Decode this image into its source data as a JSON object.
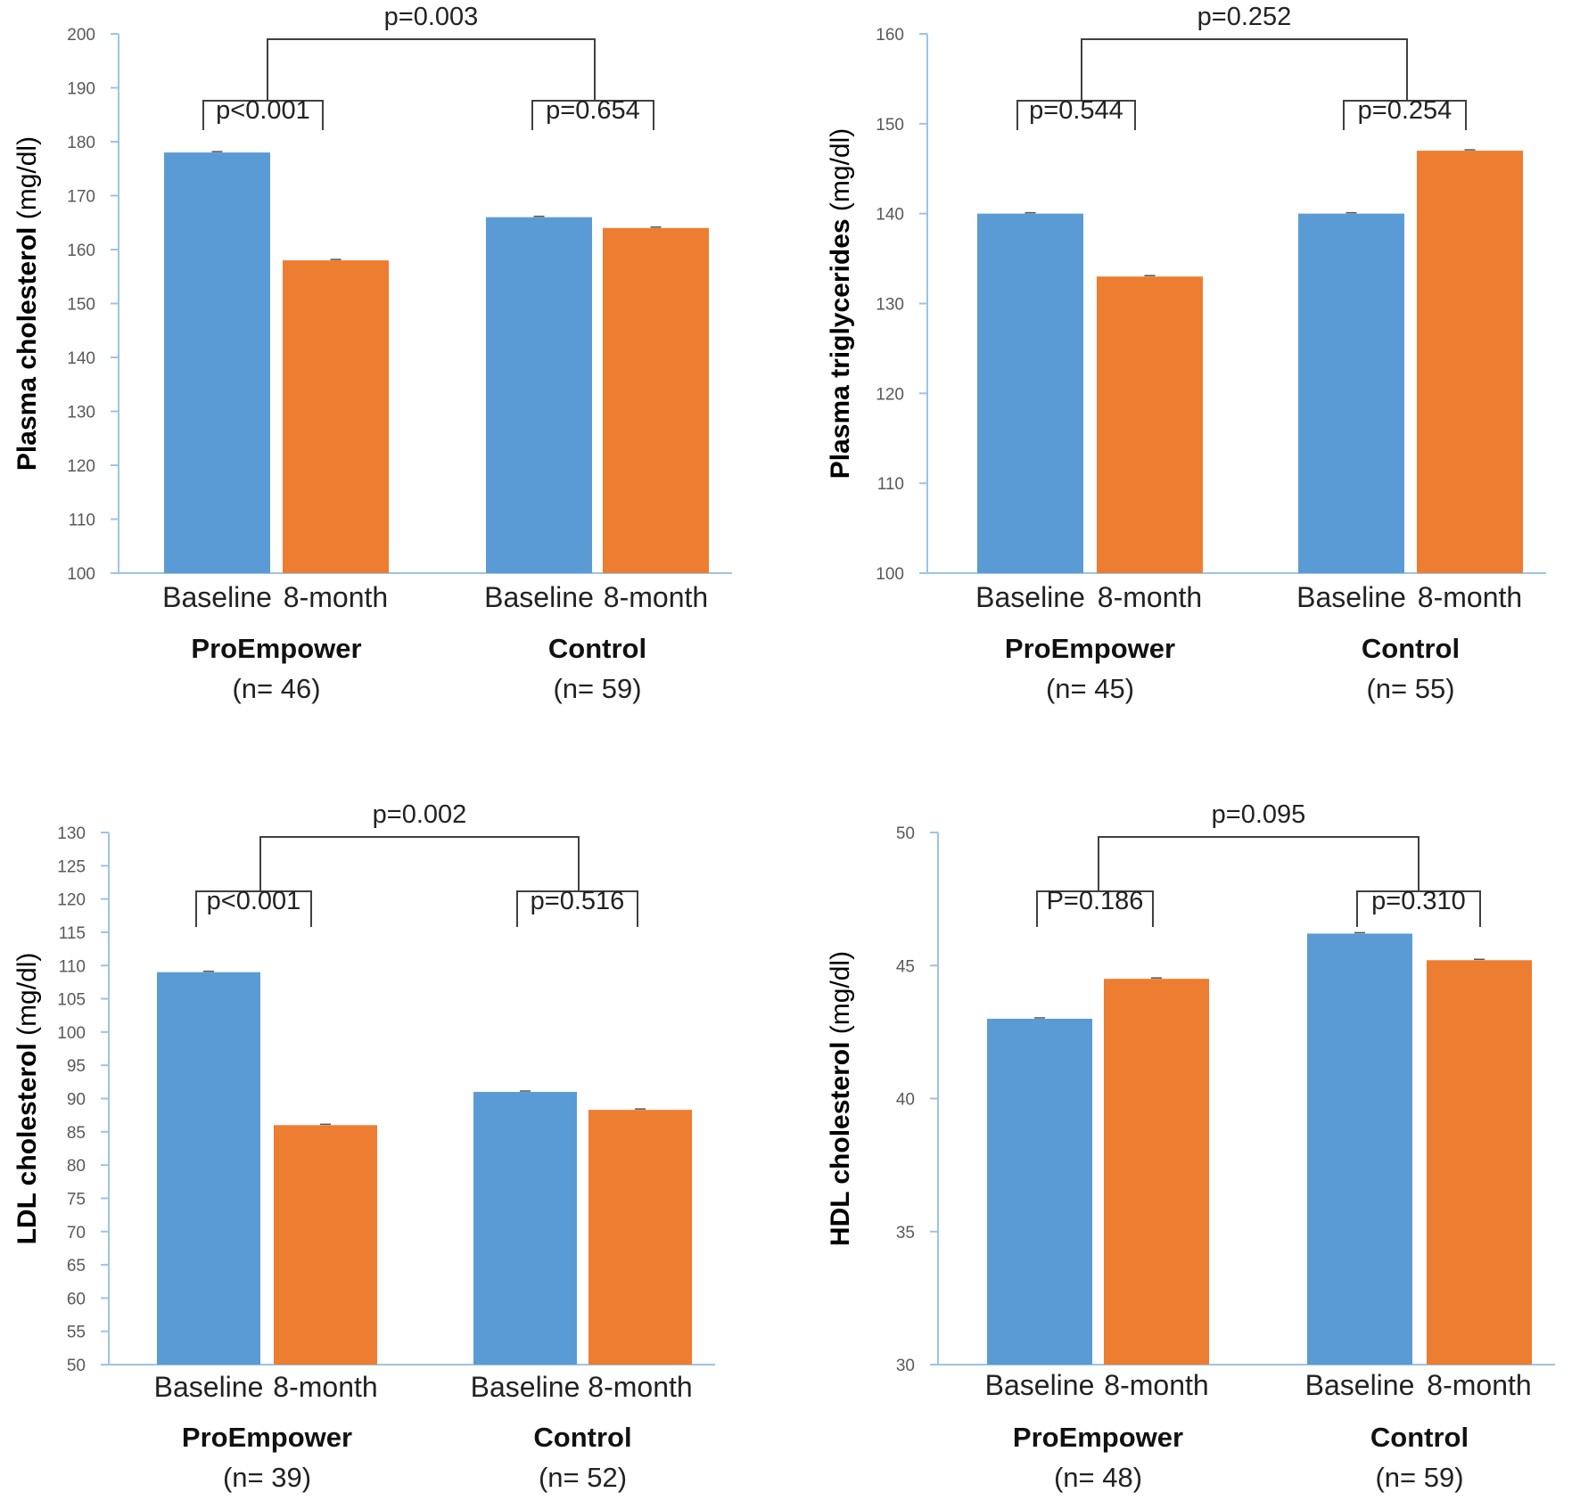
{
  "colors": {
    "baseline": "#5B9BD5",
    "eight_month": "#ED7D31",
    "axis": "#9DC3E6",
    "bracket": "#404040"
  },
  "chart_data": [
    {
      "type": "bar",
      "ylabel_bold": "Plasma cholesterol",
      "ylabel_unit": "(mg/dl)",
      "ylim": [
        100,
        200
      ],
      "ystep": 10,
      "groups": [
        {
          "name": "ProEmpower",
          "n": "(n= 46)",
          "categories": [
            "Baseline",
            "8-month"
          ],
          "values": [
            178,
            158
          ]
        },
        {
          "name": "Control",
          "n": "(n= 59)",
          "categories": [
            "Baseline",
            "8-month"
          ],
          "values": [
            166,
            164
          ]
        }
      ],
      "p_values": {
        "between": "p=0.003",
        "group1": "p<0.001",
        "group2": "p=0.654"
      }
    },
    {
      "type": "bar",
      "ylabel_bold": "Plasma triglycerides",
      "ylabel_unit": "(mg/dl)",
      "ylim": [
        100,
        160
      ],
      "ystep": 10,
      "groups": [
        {
          "name": "ProEmpower",
          "n": "(n= 45)",
          "categories": [
            "Baseline",
            "8-month"
          ],
          "values": [
            140,
            133
          ]
        },
        {
          "name": "Control",
          "n": "(n= 55)",
          "categories": [
            "Baseline",
            "8-month"
          ],
          "values": [
            140,
            147
          ]
        }
      ],
      "p_values": {
        "between": "p=0.252",
        "group1": "p=0.544",
        "group2": "p=0.254"
      }
    },
    {
      "type": "bar",
      "ylabel_bold": "LDL cholesterol",
      "ylabel_unit": "(mg/dl)",
      "ylim": [
        50,
        130
      ],
      "ystep": 5,
      "groups": [
        {
          "name": "ProEmpower",
          "n": "(n= 39)",
          "categories": [
            "Baseline",
            "8-month"
          ],
          "values": [
            109,
            86
          ]
        },
        {
          "name": "Control",
          "n": "(n= 52)",
          "categories": [
            "Baseline",
            "8-month"
          ],
          "values": [
            91,
            88.3
          ]
        }
      ],
      "p_values": {
        "between": "p=0.002",
        "group1": "p<0.001",
        "group2": "p=0.516"
      }
    },
    {
      "type": "bar",
      "ylabel_bold": "HDL cholesterol",
      "ylabel_unit": "(mg/dl)",
      "ylim": [
        30,
        50
      ],
      "ystep": 5,
      "groups": [
        {
          "name": "ProEmpower",
          "n": "(n= 48)",
          "categories": [
            "Baseline",
            "8-month"
          ],
          "values": [
            43,
            44.5
          ]
        },
        {
          "name": "Control",
          "n": "(n= 59)",
          "categories": [
            "Baseline",
            "8-month"
          ],
          "values": [
            46.2,
            45.2
          ]
        }
      ],
      "p_values": {
        "between": "p=0.095",
        "group1": "P=0.186",
        "group2": "p=0.310"
      }
    }
  ]
}
